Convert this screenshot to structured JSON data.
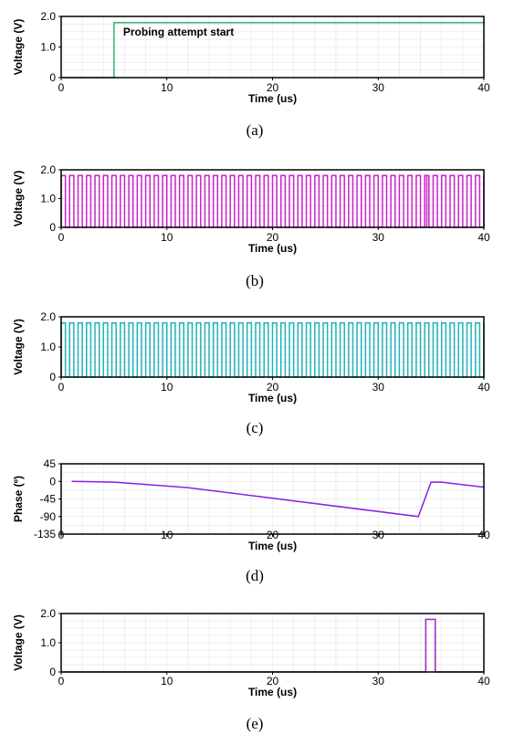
{
  "chart_data": [
    {
      "type": "line",
      "caption": "(a)",
      "xlabel": "Time (us)",
      "ylabel": "Voltage (V)",
      "xlim": [
        0,
        40
      ],
      "ylim": [
        0,
        2
      ],
      "xticks": [
        "0",
        "10",
        "20",
        "30",
        "40"
      ],
      "yticks": [
        "0",
        "1.0",
        "2.0"
      ],
      "grid": true,
      "color": "#2fb36e",
      "annotation": "Probing attempt start",
      "series": [
        {
          "x": [
            0,
            5,
            5,
            40
          ],
          "y": [
            0,
            0,
            1.8,
            1.8
          ]
        }
      ]
    },
    {
      "type": "line",
      "caption": "(b)",
      "xlabel": "Time (us)",
      "ylabel": "Voltage (V)",
      "xlim": [
        0,
        40
      ],
      "ylim": [
        0,
        2
      ],
      "xticks": [
        "0",
        "10",
        "20",
        "30",
        "40"
      ],
      "yticks": [
        "0",
        "1.0",
        "2.0"
      ],
      "grid": true,
      "color": "#cc22cc",
      "square_wave": {
        "period": 0.8,
        "duty": 0.5,
        "high": 1.8,
        "low": 0,
        "start": 0,
        "end": 40,
        "glitch_at": 34.6
      }
    },
    {
      "type": "line",
      "caption": "(c)",
      "xlabel": "Time (us)",
      "ylabel": "Voltage (V)",
      "xlim": [
        0,
        40
      ],
      "ylim": [
        0,
        2
      ],
      "xticks": [
        "0",
        "10",
        "20",
        "30",
        "40"
      ],
      "yticks": [
        "0",
        "1.0",
        "2.0"
      ],
      "grid": true,
      "color": "#22b3b8",
      "square_wave": {
        "period": 0.8,
        "duty": 0.5,
        "high": 1.8,
        "low": 0,
        "start": 0,
        "end": 40
      }
    },
    {
      "type": "line",
      "caption": "(d)",
      "xlabel": "Time (us)",
      "ylabel": "Phase (º)",
      "xlim": [
        0,
        40
      ],
      "ylim": [
        -135,
        45
      ],
      "xticks": [
        "0",
        "10",
        "20",
        "30",
        "40"
      ],
      "yticks": [
        "-135",
        "-90",
        "-45",
        "0",
        "45"
      ],
      "grid": true,
      "color": "#8a1fe8",
      "series": [
        {
          "x": [
            1,
            3,
            5,
            8,
            12,
            33.8,
            35,
            36,
            40
          ],
          "y": [
            0,
            -1,
            -2,
            -8,
            -16,
            -90,
            -2,
            -2,
            -15
          ]
        }
      ]
    },
    {
      "type": "line",
      "caption": "(e)",
      "xlabel": "Time (us)",
      "ylabel": "Voltage (V)",
      "xlim": [
        0,
        40
      ],
      "ylim": [
        0,
        2
      ],
      "xticks": [
        "0",
        "10",
        "20",
        "30",
        "40"
      ],
      "yticks": [
        "0",
        "1.0",
        "2.0"
      ],
      "grid": true,
      "color": "#a020d0",
      "series": [
        {
          "x": [
            0,
            34.5,
            34.5,
            35.4,
            35.4,
            40
          ],
          "y": [
            0,
            0,
            1.8,
            1.8,
            0,
            0
          ]
        }
      ]
    }
  ]
}
